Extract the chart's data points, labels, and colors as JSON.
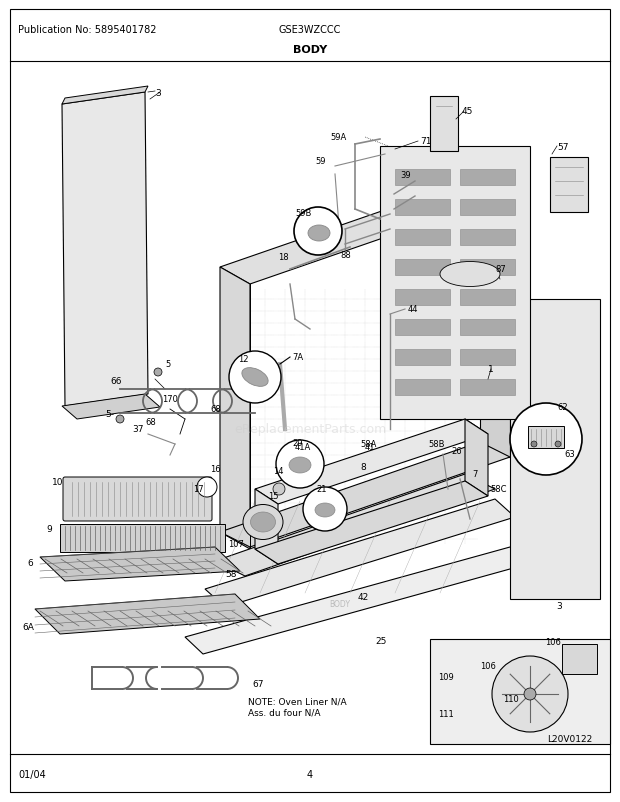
{
  "title": "BODY",
  "pub_no": "Publication No: 5895401782",
  "model": "GSE3WZCCC",
  "date": "01/04",
  "page": "4",
  "diagram_id": "L20V0122",
  "note_text": "NOTE: Oven Liner N/A\nAss. du four N/A",
  "watermark": "eReplacementParts.com",
  "bg_color": "#ffffff",
  "text_color": "#000000",
  "fig_width": 6.2,
  "fig_height": 8.03,
  "dpi": 100
}
